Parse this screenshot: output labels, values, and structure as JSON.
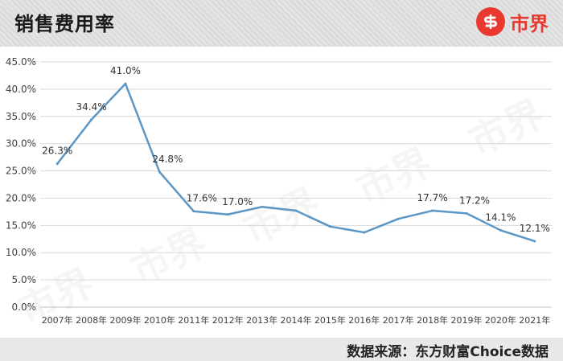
{
  "header": {
    "title": "销售费用率",
    "logo_text": "市界"
  },
  "source": "数据来源：东方财富Choice数据",
  "watermark": "市界",
  "colors": {
    "line": "#5b96c4",
    "accent": "#e8382f"
  },
  "chart_data": {
    "type": "line",
    "title": "销售费用率",
    "x": [
      "2007年",
      "2008年",
      "2009年",
      "2010年",
      "2011年",
      "2012年",
      "2013年",
      "2014年",
      "2015年",
      "2016年",
      "2017年",
      "2018年",
      "2019年",
      "2020年",
      "2021年"
    ],
    "series": [
      {
        "values": [
          26.3,
          34.4,
          41.0,
          24.8,
          17.6,
          17.0,
          18.4,
          17.7,
          14.8,
          13.7,
          16.2,
          17.7,
          17.2,
          14.1,
          12.1
        ]
      }
    ],
    "data_labels": [
      "26.3%",
      "34.4%",
      "41.0%",
      "24.8%",
      "17.6%",
      "17.0%",
      "",
      "",
      "",
      "",
      "",
      "17.7%",
      "17.2%",
      "14.1%",
      "12.1%"
    ],
    "y_ticks": [
      "0.0%",
      "5.0%",
      "10.0%",
      "15.0%",
      "20.0%",
      "25.0%",
      "30.0%",
      "35.0%",
      "40.0%",
      "45.0%"
    ],
    "ylim": [
      0,
      45
    ],
    "grid": true
  }
}
